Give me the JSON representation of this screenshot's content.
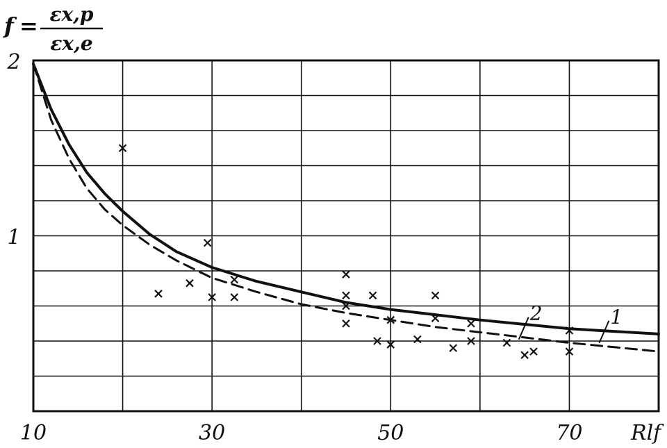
{
  "chart_data": {
    "type": "line",
    "ylabel": {
      "symbol": "f",
      "equals": "=",
      "numerator": "εx,p",
      "denominator": "εx,e"
    },
    "xlabel": "Rlf",
    "xlim": [
      10,
      80
    ],
    "ylim": [
      0,
      2
    ],
    "grid": true,
    "x_ticks": [
      {
        "value": 10,
        "label": "10"
      },
      {
        "value": 30,
        "label": "30"
      },
      {
        "value": 50,
        "label": "50"
      },
      {
        "value": 70,
        "label": "70"
      }
    ],
    "y_ticks": [
      {
        "value": 1,
        "label": "1"
      },
      {
        "value": 2,
        "label": "2"
      }
    ],
    "x_grid": [
      10,
      20,
      30,
      40,
      50,
      60,
      70,
      80
    ],
    "y_grid": [
      0.2,
      0.4,
      0.6,
      0.8,
      1.0,
      1.2,
      1.4,
      1.6,
      1.8,
      2.0
    ],
    "series": [
      {
        "name": "2",
        "style": "solid",
        "x": [
          10,
          12,
          14,
          16,
          18,
          20,
          23,
          26,
          30,
          35,
          40,
          45,
          50,
          55,
          60,
          65,
          70,
          75,
          80
        ],
        "y": [
          1.98,
          1.72,
          1.52,
          1.36,
          1.24,
          1.14,
          1.01,
          0.91,
          0.82,
          0.74,
          0.68,
          0.62,
          0.58,
          0.55,
          0.52,
          0.495,
          0.47,
          0.455,
          0.44
        ]
      },
      {
        "name": "1",
        "style": "dashed",
        "x": [
          10,
          12,
          14,
          16,
          18,
          20,
          23,
          26,
          30,
          35,
          40,
          45,
          50,
          55,
          60,
          65,
          70,
          75,
          80
        ],
        "y": [
          1.98,
          1.66,
          1.44,
          1.27,
          1.15,
          1.06,
          0.95,
          0.86,
          0.76,
          0.68,
          0.61,
          0.56,
          0.52,
          0.48,
          0.45,
          0.42,
          0.39,
          0.365,
          0.34
        ]
      }
    ],
    "scatter": {
      "marker": "x",
      "points": [
        [
          20,
          1.5
        ],
        [
          24,
          0.67
        ],
        [
          27.5,
          0.73
        ],
        [
          29.5,
          0.96
        ],
        [
          30,
          0.65
        ],
        [
          32.5,
          0.75
        ],
        [
          32.5,
          0.65
        ],
        [
          45,
          0.78
        ],
        [
          45,
          0.66
        ],
        [
          45,
          0.6
        ],
        [
          45,
          0.5
        ],
        [
          48,
          0.66
        ],
        [
          48.5,
          0.4
        ],
        [
          50,
          0.52
        ],
        [
          50,
          0.38
        ],
        [
          53,
          0.41
        ],
        [
          55,
          0.66
        ],
        [
          55,
          0.53
        ],
        [
          57,
          0.36
        ],
        [
          59,
          0.5
        ],
        [
          59,
          0.4
        ],
        [
          63,
          0.39
        ],
        [
          65,
          0.32
        ],
        [
          66,
          0.34
        ],
        [
          70,
          0.46
        ],
        [
          70,
          0.34
        ]
      ]
    },
    "curve_labels": [
      {
        "text": "2",
        "x": 64.5,
        "y": 0.52
      },
      {
        "text": "1",
        "x": 73.5,
        "y": 0.5
      }
    ]
  }
}
